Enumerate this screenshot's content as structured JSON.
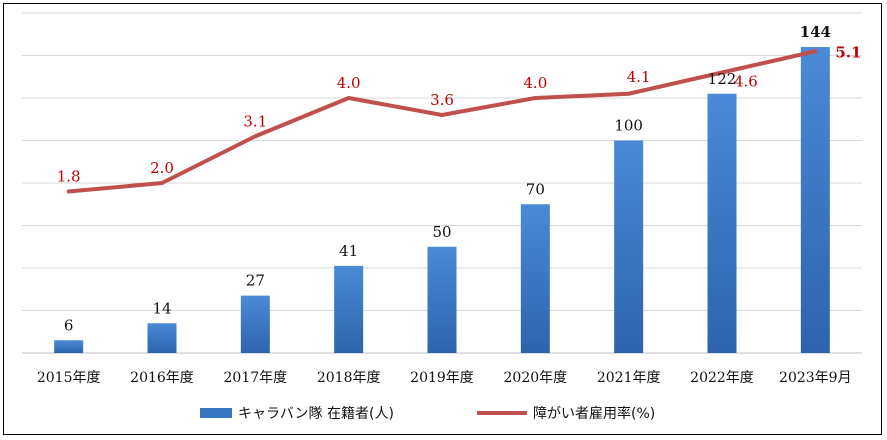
{
  "chart_data": {
    "type": "bar",
    "categories": [
      "2015年度",
      "2016年度",
      "2017年度",
      "2018年度",
      "2019年度",
      "2020年度",
      "2021年度",
      "2022年度",
      "2023年9月"
    ],
    "series": [
      {
        "name": "キャラバン隊 在籍者(人)",
        "type": "bar",
        "values": [
          6,
          14,
          27,
          41,
          50,
          70,
          100,
          122,
          144
        ],
        "color": "#3a78c5"
      },
      {
        "name": "障がい者雇用率(%)",
        "type": "line",
        "values": [
          1.8,
          2.0,
          3.1,
          4.0,
          3.6,
          4.0,
          4.1,
          4.6,
          5.1
        ],
        "color": "#c0504d"
      }
    ],
    "data_labels": {
      "bar": [
        "6",
        "14",
        "27",
        "41",
        "50",
        "70",
        "100",
        "122",
        "144"
      ],
      "line": [
        "1.8",
        "2.0",
        "3.1",
        "4.0",
        "3.6",
        "4.0",
        "4.1",
        "4.6",
        "5.1"
      ]
    },
    "bar_ylim": [
      0,
      160
    ],
    "line_ylim": [
      -2,
      6
    ],
    "grid": true,
    "legend_position": "bottom",
    "title": "",
    "xlabel": "",
    "ylabel": ""
  }
}
